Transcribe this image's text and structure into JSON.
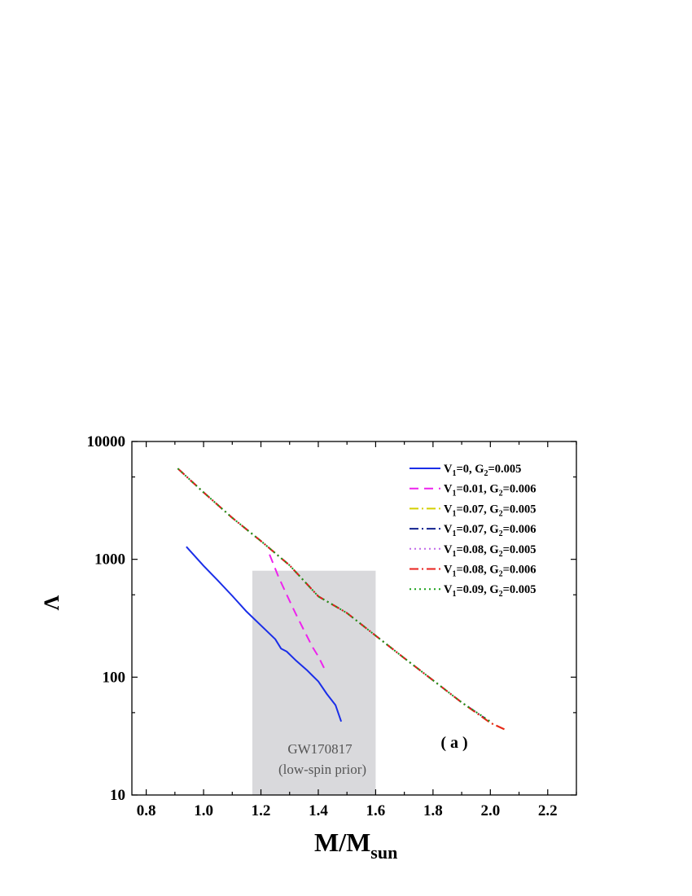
{
  "chart_data": {
    "type": "line",
    "xlabel": "M/M",
    "xlabel_sub": "sun",
    "ylabel": "Λ",
    "xlim": [
      0.75,
      2.3
    ],
    "ylim": [
      10,
      10000
    ],
    "yscale": "log",
    "xticks": [
      "0.8",
      "1.0",
      "1.2",
      "1.4",
      "1.6",
      "1.8",
      "2.0",
      "2.2"
    ],
    "yticks": [
      "10",
      "100",
      "1000",
      "10000"
    ],
    "grid": false,
    "legend_position": "top-right",
    "panel_label": "( a )",
    "region": {
      "x_range": [
        1.17,
        1.6
      ],
      "y_range": [
        10,
        800
      ],
      "label_line1": "GW170817",
      "label_line2": "(low-spin prior)",
      "color": "#d9d9dc"
    },
    "series": [
      {
        "name": "V1=0, G2=0.005",
        "name_parts": {
          "a": "V",
          "a_sub": "1",
          "b": "=0, G",
          "b_sub": "2",
          "c": "=0.005"
        },
        "color": "#1a2ee8",
        "dash": "solid",
        "x": [
          0.94,
          1.0,
          1.05,
          1.1,
          1.15,
          1.2,
          1.25,
          1.27,
          1.29,
          1.32,
          1.36,
          1.4,
          1.43,
          1.46,
          1.48
        ],
        "y": [
          1280,
          880,
          660,
          490,
          360,
          275,
          210,
          175,
          165,
          140,
          115,
          92,
          72,
          58,
          42
        ]
      },
      {
        "name": "V1=0.01, G2=0.006",
        "name_parts": {
          "a": "V",
          "a_sub": "1",
          "b": "=0.01, G",
          "b_sub": "2",
          "c": "=0.006"
        },
        "color": "#ee22ee",
        "dash": "dash",
        "x": [
          1.23,
          1.26,
          1.29,
          1.32,
          1.35,
          1.38,
          1.4,
          1.42
        ],
        "y": [
          1100,
          720,
          500,
          350,
          250,
          180,
          150,
          120
        ]
      },
      {
        "name": "V1=0.07, G2=0.005",
        "name_parts": {
          "a": "V",
          "a_sub": "1",
          "b": "=0.07, G",
          "b_sub": "2",
          "c": "=0.005"
        },
        "color": "#d4d000",
        "dash": "dashdot",
        "x": [
          0.91,
          1.0,
          1.1,
          1.2,
          1.3,
          1.4,
          1.5,
          1.6,
          1.7,
          1.8,
          1.9,
          2.0,
          2.05
        ],
        "y": [
          5900,
          3700,
          2250,
          1430,
          890,
          485,
          350,
          225,
          145,
          94,
          61,
          41,
          36
        ]
      },
      {
        "name": "V1=0.07, G2=0.006",
        "name_parts": {
          "a": "V",
          "a_sub": "1",
          "b": "=0.07, G",
          "b_sub": "2",
          "c": "=0.006"
        },
        "color": "#10208f",
        "dash": "dashdot",
        "x": [
          0.91,
          1.0,
          1.1,
          1.2,
          1.3,
          1.4,
          1.5,
          1.6,
          1.7,
          1.8,
          1.9,
          1.98
        ],
        "y": [
          5900,
          3700,
          2250,
          1430,
          890,
          485,
          350,
          225,
          145,
          94,
          61,
          45
        ]
      },
      {
        "name": "V1=0.08, G2=0.005",
        "name_parts": {
          "a": "V",
          "a_sub": "1",
          "b": "=0.08, G",
          "b_sub": "2",
          "c": "=0.005"
        },
        "color": "#c069e8",
        "dash": "dot",
        "x": [
          0.91,
          1.0,
          1.1,
          1.2,
          1.3,
          1.4,
          1.5,
          1.6,
          1.7,
          1.8,
          1.9,
          2.0
        ],
        "y": [
          5900,
          3700,
          2250,
          1430,
          890,
          485,
          350,
          225,
          145,
          94,
          61,
          42
        ]
      },
      {
        "name": "V1=0.08, G2=0.006",
        "name_parts": {
          "a": "V",
          "a_sub": "1",
          "b": "=0.08, G",
          "b_sub": "2",
          "c": "=0.006"
        },
        "color": "#e8221e",
        "dash": "dashdot",
        "x": [
          0.91,
          1.0,
          1.1,
          1.2,
          1.3,
          1.4,
          1.5,
          1.6,
          1.7,
          1.8,
          1.9,
          2.0,
          2.05
        ],
        "y": [
          5900,
          3700,
          2250,
          1430,
          890,
          485,
          350,
          225,
          145,
          94,
          61,
          41,
          36
        ]
      },
      {
        "name": "V1=0.09, G2=0.005",
        "name_parts": {
          "a": "V",
          "a_sub": "1",
          "b": "=0.09, G",
          "b_sub": "2",
          "c": "=0.005"
        },
        "color": "#18a018",
        "dash": "dot",
        "x": [
          0.91,
          1.0,
          1.1,
          1.2,
          1.3,
          1.4,
          1.5,
          1.6,
          1.7,
          1.8,
          1.9,
          2.0
        ],
        "y": [
          5900,
          3700,
          2250,
          1430,
          890,
          485,
          350,
          225,
          145,
          94,
          61,
          42
        ]
      }
    ]
  }
}
